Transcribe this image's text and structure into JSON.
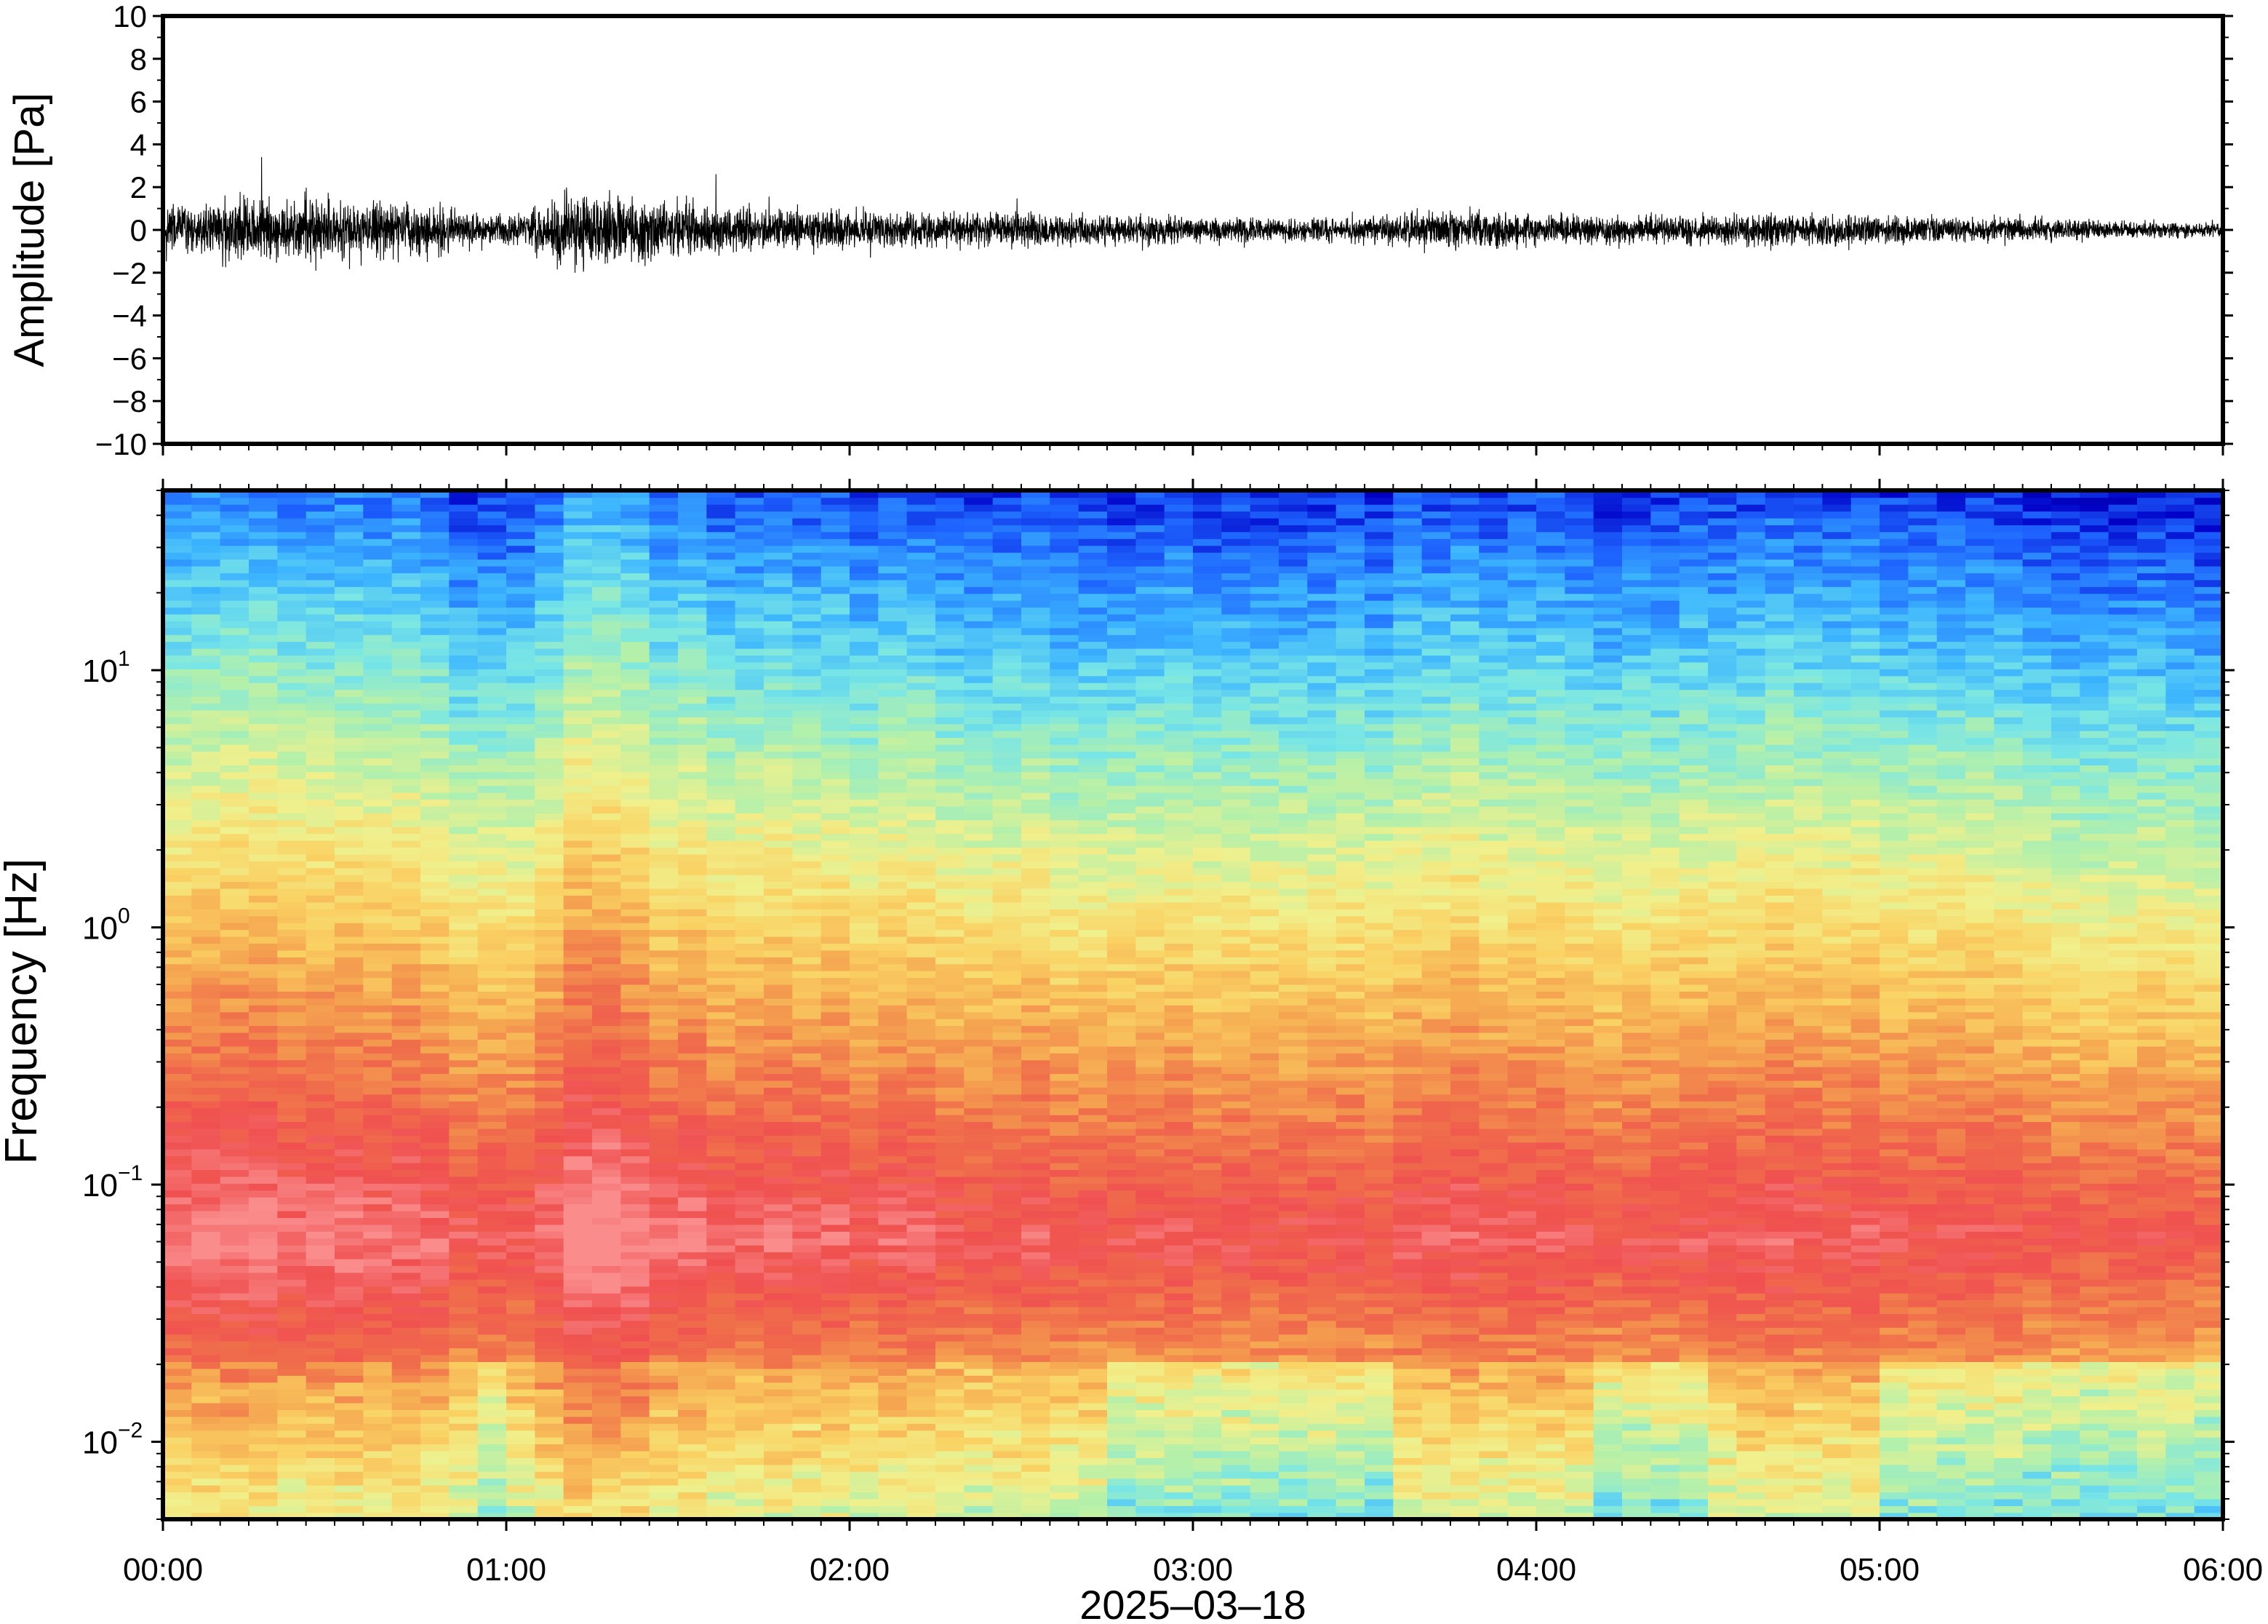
{
  "chart_data": [
    {
      "type": "line",
      "panel": "waveform",
      "title": "",
      "ylabel": "Amplitude [Pa]",
      "xlabel": "",
      "xlim": [
        "00:00",
        "06:00"
      ],
      "ylim": [
        -10,
        10
      ],
      "y_ticks": [
        10,
        8,
        6,
        4,
        2,
        0,
        -2,
        -4,
        -6,
        -8,
        -10
      ],
      "y_tick_labels": [
        "10",
        "8",
        "6",
        "4",
        "2",
        "0",
        "−2",
        "−4",
        "−6",
        "−8",
        "−10"
      ],
      "grid": false,
      "series": [
        {
          "color": "#000000",
          "envelope_hours": [
            0.0,
            0.25,
            0.5,
            0.75,
            1.0,
            1.1,
            1.2,
            1.3,
            1.45,
            1.6,
            1.75,
            2.0,
            2.25,
            2.5,
            2.75,
            3.0,
            3.25,
            3.5,
            3.75,
            4.0,
            4.25,
            4.5,
            4.75,
            5.0,
            5.25,
            5.5,
            5.75,
            6.0
          ],
          "envelope_amplitude": [
            1.9,
            2.1,
            2.2,
            1.8,
            0.9,
            1.8,
            2.9,
            2.6,
            2.1,
            1.7,
            1.5,
            1.4,
            1.2,
            1.2,
            1.1,
            0.9,
            0.8,
            0.9,
            1.5,
            1.2,
            1.0,
            1.1,
            1.3,
            1.1,
            0.9,
            0.8,
            0.6,
            0.5
          ]
        }
      ]
    },
    {
      "type": "heatmap",
      "panel": "spectrogram",
      "title": "",
      "ylabel": "Frequency [Hz]",
      "xlabel": "2025–03–18",
      "xlim": [
        "00:00",
        "06:00"
      ],
      "ylim": [
        0.005,
        50
      ],
      "yscale": "log",
      "y_ticks": [
        10,
        1,
        0.1,
        0.01
      ],
      "y_tick_labels": [
        {
          "base": "10",
          "exp": "1"
        },
        {
          "base": "10",
          "exp": "0"
        },
        {
          "base": "10",
          "exp": "−1"
        },
        {
          "base": "10",
          "exp": "−2"
        }
      ],
      "x_ticks": [
        "00:00",
        "01:00",
        "02:00",
        "03:00",
        "04:00",
        "05:00",
        "06:00"
      ],
      "colormap": [
        "#0a0a78",
        "#0000c8",
        "#1e64ff",
        "#3cb4ff",
        "#78e6e6",
        "#b4f0aa",
        "#f0f08c",
        "#fad264",
        "#f5a550",
        "#f06e4b",
        "#f05050",
        "#fa8c8c"
      ],
      "grid": false
    }
  ]
}
